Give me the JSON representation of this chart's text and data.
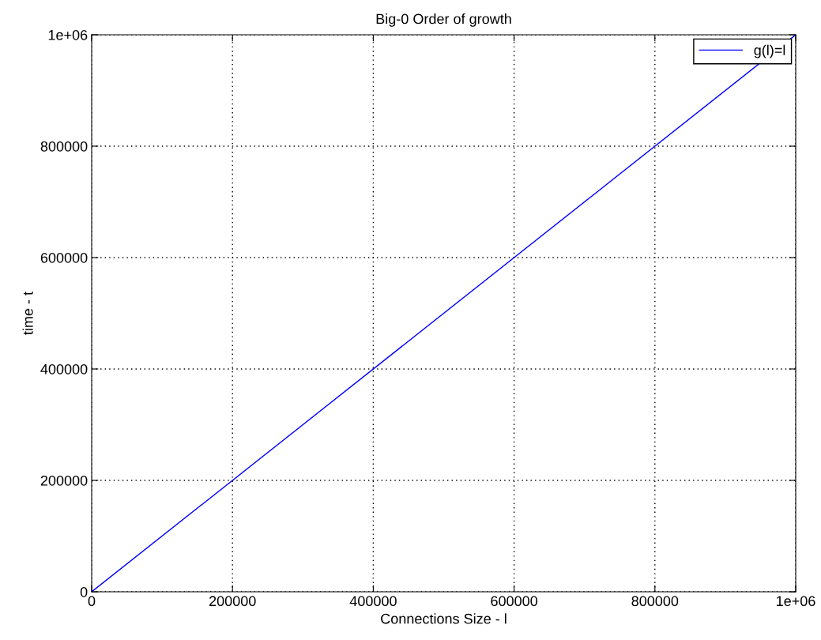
{
  "chart_data": {
    "type": "line",
    "title": "Big-0 Order of growth",
    "xlabel": "Connections Size - l",
    "ylabel": "time - t",
    "x": [
      0,
      1000000
    ],
    "series": [
      {
        "name": "g(l)=l",
        "color": "#0000ff",
        "values": [
          0,
          1000000
        ]
      }
    ],
    "xlim": [
      0,
      1000000
    ],
    "ylim": [
      0,
      1000000
    ],
    "xticks": [
      0,
      200000,
      400000,
      600000,
      800000,
      {
        "value": 1000000,
        "label": "1e+06"
      }
    ],
    "yticks": [
      0,
      200000,
      400000,
      600000,
      800000,
      {
        "value": 1000000,
        "label": "1e+06"
      }
    ],
    "grid": true,
    "legend": "top right",
    "line_style": "solid",
    "marker": "none"
  }
}
